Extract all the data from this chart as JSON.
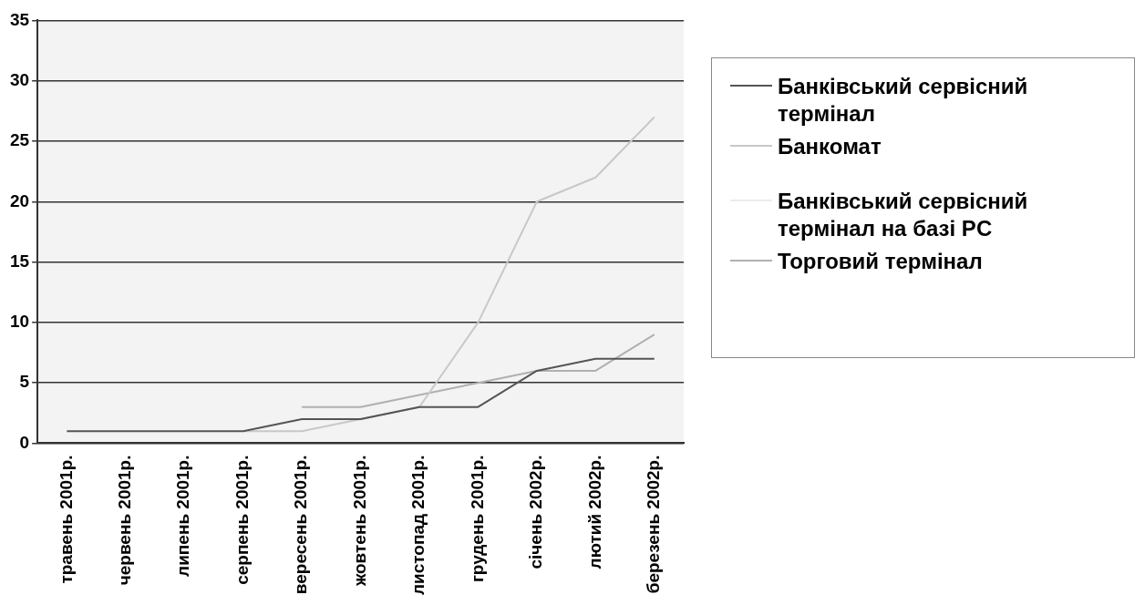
{
  "chart_data": {
    "type": "line",
    "categories": [
      "травень 2001р.",
      "червень 2001р.",
      "липень 2001р.",
      "серпень 2001р.",
      "вересень 2001р.",
      "жовтень 2001р.",
      "листопад 2001р.",
      "грудень 2001р.",
      "січень 2002р.",
      "лютий 2002р.",
      "березень 2002р."
    ],
    "series": [
      {
        "name": "Банківський сервісний термінал",
        "color": "#555555",
        "values": [
          1,
          1,
          1,
          1,
          2,
          2,
          3,
          3,
          6,
          7,
          7
        ]
      },
      {
        "name": "Банкомат",
        "color": "#c8c8c8",
        "values": [
          null,
          null,
          null,
          1,
          1,
          2,
          3,
          10,
          20,
          22,
          27
        ]
      },
      {
        "name": "Банківський сервісний термінал на базі PC",
        "color": "#ececec",
        "values": [
          null,
          null,
          null,
          null,
          null,
          null,
          null,
          null,
          null,
          null,
          null
        ]
      },
      {
        "name": "Торговий термінал",
        "color": "#b0b0b0",
        "values": [
          null,
          null,
          null,
          null,
          3,
          3,
          4,
          5,
          6,
          6,
          9
        ]
      }
    ],
    "ylim": [
      0,
      35
    ],
    "yticks": [
      0,
      5,
      10,
      15,
      20,
      25,
      30,
      35
    ],
    "grid": "y",
    "legend": "right",
    "marker": "none",
    "line_style": "solid"
  }
}
